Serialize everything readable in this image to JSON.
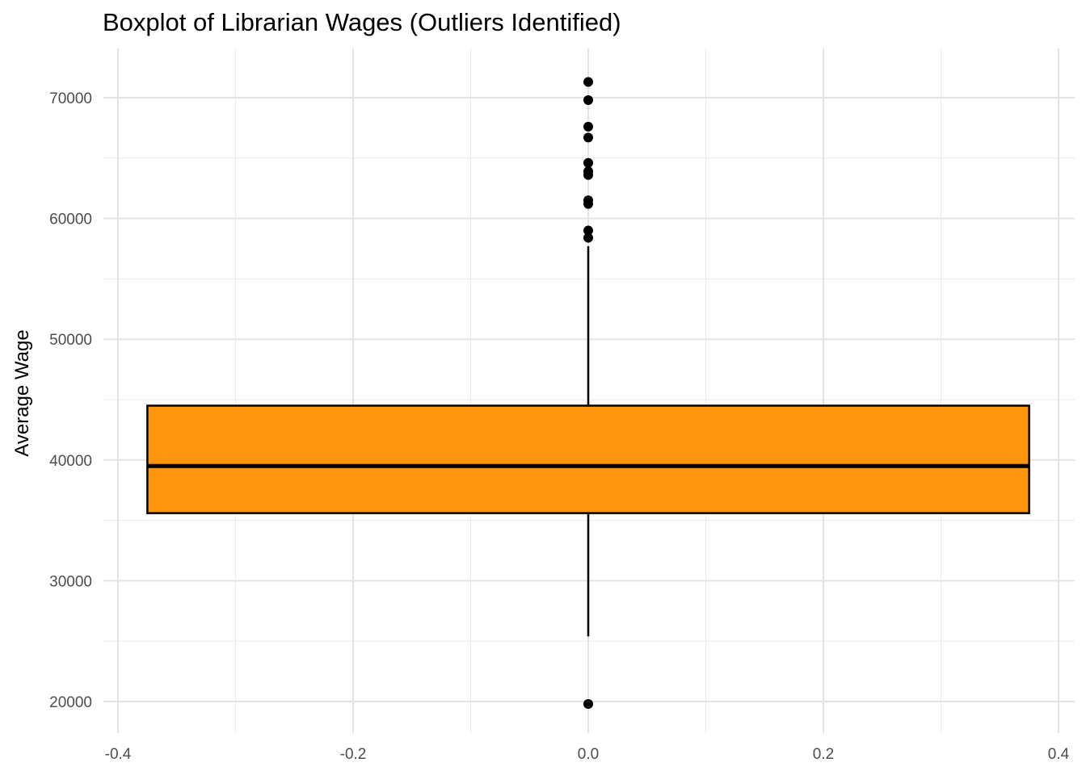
{
  "chart_data": {
    "type": "boxplot",
    "title": "Boxplot of Librarian Wages (Outliers Identified)",
    "xlabel": "",
    "ylabel": "Average Wage",
    "xlim": [
      -0.4,
      0.4
    ],
    "ylim": [
      20000,
      70000
    ],
    "x_ticks": [
      -0.4,
      -0.2,
      0.0,
      0.2,
      0.4
    ],
    "x_tick_labels": [
      "-0.4",
      "-0.2",
      "0.0",
      "0.2",
      "0.4"
    ],
    "y_ticks": [
      20000,
      30000,
      40000,
      50000,
      60000,
      70000
    ],
    "y_tick_labels": [
      "20000",
      "30000",
      "40000",
      "50000",
      "60000",
      "70000"
    ],
    "grid": true,
    "box": {
      "x": 0.0,
      "x_min": -0.375,
      "x_max": 0.375,
      "q1": 35600,
      "median": 39500,
      "q3": 44500,
      "whisker_low": 25400,
      "whisker_high": 57700,
      "fill_color": "#FF960E",
      "outliers": [
        71300,
        69800,
        67600,
        66700,
        64600,
        63900,
        63600,
        61500,
        61200,
        59000,
        58400,
        19800
      ]
    }
  }
}
